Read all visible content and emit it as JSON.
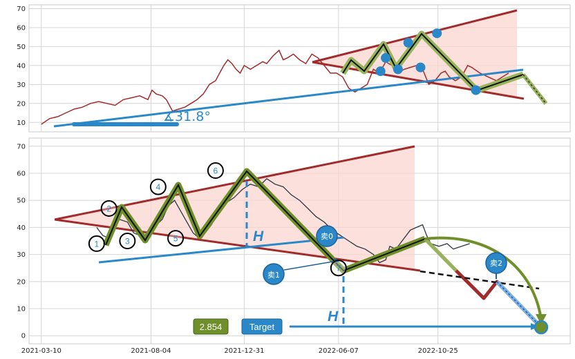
{
  "chart_data": [
    {
      "type": "line",
      "series": [
        {
          "values": [
            [
              0,
              9
            ],
            [
              8,
              12
            ],
            [
              16,
              13
            ],
            [
              24,
              15
            ],
            [
              32,
              17
            ],
            [
              40,
              18
            ],
            [
              48,
              20
            ],
            [
              56,
              21
            ],
            [
              64,
              20
            ],
            [
              72,
              19
            ],
            [
              80,
              22
            ],
            [
              88,
              23
            ],
            [
              96,
              24
            ],
            [
              104,
              22
            ],
            [
              108,
              27
            ],
            [
              112,
              25
            ],
            [
              118,
              24
            ],
            [
              122,
              22
            ],
            [
              128,
              16
            ],
            [
              134,
              17
            ],
            [
              140,
              18
            ],
            [
              146,
              20
            ],
            [
              152,
              22
            ],
            [
              158,
              25
            ],
            [
              164,
              30
            ],
            [
              170,
              32
            ],
            [
              174,
              36
            ],
            [
              178,
              40
            ],
            [
              182,
              43
            ],
            [
              186,
              41
            ],
            [
              190,
              38
            ],
            [
              194,
              36
            ],
            [
              198,
              40
            ],
            [
              204,
              38
            ],
            [
              210,
              40
            ],
            [
              216,
              42
            ],
            [
              220,
              41
            ],
            [
              226,
              45
            ],
            [
              232,
              48
            ],
            [
              236,
              43
            ],
            [
              240,
              44
            ],
            [
              246,
              46
            ],
            [
              252,
              43
            ],
            [
              258,
              41
            ],
            [
              264,
              46
            ],
            [
              270,
              44
            ],
            [
              276,
              40
            ],
            [
              282,
              36
            ],
            [
              288,
              36
            ],
            [
              294,
              34
            ],
            [
              300,
              28
            ],
            [
              306,
              26
            ],
            [
              312,
              28
            ],
            [
              318,
              30
            ],
            [
              324,
              38
            ],
            [
              330,
              36
            ],
            [
              336,
              42
            ],
            [
              342,
              40
            ],
            [
              348,
              36
            ],
            [
              354,
              38
            ],
            [
              360,
              39
            ],
            [
              366,
              40
            ],
            [
              372,
              38
            ],
            [
              378,
              30
            ],
            [
              384,
              32
            ],
            [
              390,
              36
            ],
            [
              394,
              37
            ],
            [
              398,
              34
            ],
            [
              404,
              32
            ],
            [
              410,
              34
            ],
            [
              416,
              40
            ],
            [
              420,
              39
            ],
            [
              428,
              36
            ],
            [
              436,
              34
            ],
            [
              444,
              32
            ],
            [
              450,
              34
            ],
            [
              456,
              36
            ]
          ]
        }
      ],
      "xlim": [
        -12,
        516
      ],
      "ylim": [
        5,
        72
      ],
      "yticks": [
        "10",
        "20",
        "30",
        "40",
        "50",
        "60",
        "70"
      ],
      "annotation": {
        "angle_label": "∡31.8°"
      },
      "pivots": [
        [
          331,
          37
        ],
        [
          336,
          44
        ],
        [
          348,
          38
        ],
        [
          358,
          52
        ],
        [
          370,
          39
        ],
        [
          386,
          57
        ],
        [
          424,
          27
        ]
      ]
    },
    {
      "type": "line",
      "series": [
        {
          "values": [
            [
              54,
              40
            ],
            [
              60,
              37
            ],
            [
              66,
              36
            ],
            [
              70,
              40
            ],
            [
              76,
              43
            ],
            [
              84,
              42
            ],
            [
              90,
              38
            ],
            [
              96,
              37
            ],
            [
              104,
              36
            ],
            [
              110,
              40
            ],
            [
              118,
              43
            ],
            [
              124,
              48
            ],
            [
              130,
              50
            ],
            [
              136,
              46
            ],
            [
              142,
              42
            ],
            [
              148,
              38
            ],
            [
              154,
              36
            ],
            [
              160,
              38
            ],
            [
              166,
              41
            ],
            [
              172,
              45
            ],
            [
              180,
              49
            ],
            [
              188,
              51
            ],
            [
              196,
              54
            ],
            [
              204,
              56
            ],
            [
              212,
              55
            ],
            [
              220,
              58
            ],
            [
              228,
              56
            ],
            [
              236,
              55
            ],
            [
              244,
              52
            ],
            [
              252,
              50
            ],
            [
              260,
              47
            ],
            [
              268,
              44
            ],
            [
              276,
              42
            ],
            [
              284,
              39
            ],
            [
              292,
              37
            ],
            [
              300,
              35
            ],
            [
              308,
              33
            ],
            [
              316,
              32
            ],
            [
              324,
              30
            ],
            [
              330,
              27
            ],
            [
              336,
              28
            ],
            [
              340,
              33
            ],
            [
              346,
              32
            ],
            [
              352,
              35
            ],
            [
              360,
              39
            ],
            [
              366,
              40
            ],
            [
              372,
              41
            ],
            [
              376,
              37
            ],
            [
              380,
              34
            ],
            [
              388,
              33
            ],
            [
              396,
              34
            ],
            [
              402,
              32
            ],
            [
              410,
              33
            ],
            [
              418,
              34
            ]
          ]
        }
      ],
      "xlim": [
        -12,
        516
      ],
      "ylim": [
        -3,
        73
      ],
      "xticks": [
        {
          "x": 0,
          "label": "2021-03-10"
        },
        {
          "x": 107,
          "label": "2021-08-04"
        },
        {
          "x": 198,
          "label": "2021-12-31"
        },
        {
          "x": 290,
          "label": "2022-06-07"
        },
        {
          "x": 387,
          "label": "2022-10-25"
        }
      ],
      "yticks": [
        "0",
        "10",
        "20",
        "30",
        "40",
        "50",
        "60",
        "70"
      ],
      "pattern_points": [
        {
          "label": "1",
          "x": 54,
          "y": 34
        },
        {
          "label": "2",
          "x": 66,
          "y": 47
        },
        {
          "label": "3",
          "x": 84,
          "y": 35
        },
        {
          "label": "4",
          "x": 114,
          "y": 55
        },
        {
          "label": "5",
          "x": 131,
          "y": 36
        },
        {
          "label": "6",
          "x": 170,
          "y": 61
        },
        {
          "label": "7",
          "x": 290,
          "y": 25
        }
      ],
      "annotations": {
        "h_label": "H",
        "sell0": "卖0",
        "sell1": "卖1",
        "sell2": "卖2",
        "value_box": "2.854",
        "target_box": "Target"
      },
      "colors": {
        "triangle_edge": "#a12a2a",
        "triangle_fill": "#f9d6d0",
        "trend_blue": "#2a88c8",
        "zigzag_green": "#6e8f2a",
        "price": "#2c3440"
      }
    }
  ]
}
